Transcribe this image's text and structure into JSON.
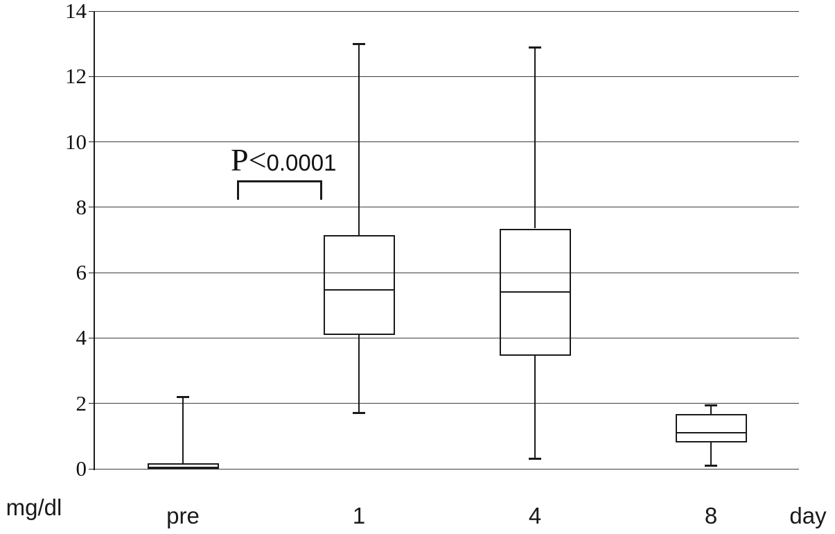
{
  "figure": {
    "y_unit_label": "mg/dl",
    "x_unit_label": "day",
    "annotation": {
      "p_prefix": "P<",
      "p_value": "0.0001"
    }
  },
  "chart_data": {
    "type": "boxplot",
    "title": "",
    "xlabel": "day",
    "ylabel": "mg/dl",
    "ylim": [
      0,
      14
    ],
    "yticks": [
      0,
      2,
      4,
      6,
      8,
      10,
      12,
      14
    ],
    "grid": true,
    "legend": false,
    "categories": [
      "pre",
      "1",
      "4",
      "8"
    ],
    "series": [
      {
        "category": "pre",
        "whisker_low": null,
        "q1": 0,
        "median": 0.05,
        "q3": 0.18,
        "whisker_high": 2.2
      },
      {
        "category": "1",
        "whisker_low": 1.7,
        "q1": 4.1,
        "median": 5.48,
        "q3": 7.15,
        "whisker_high": 13.0
      },
      {
        "category": "4",
        "whisker_low": 0.3,
        "q1": 3.45,
        "median": 5.4,
        "q3": 7.35,
        "whisker_high": 12.9
      },
      {
        "category": "8",
        "whisker_low": 0.08,
        "q1": 0.8,
        "median": 1.1,
        "q3": 1.68,
        "whisker_high": 1.95
      }
    ],
    "annotation": {
      "text": "P<0.0001",
      "between": [
        "pre",
        "1"
      ]
    },
    "colors": {
      "line": "#1a1a1a",
      "gridline": "#3d3d3d",
      "background": "#ffffff",
      "text": "#111111"
    }
  }
}
